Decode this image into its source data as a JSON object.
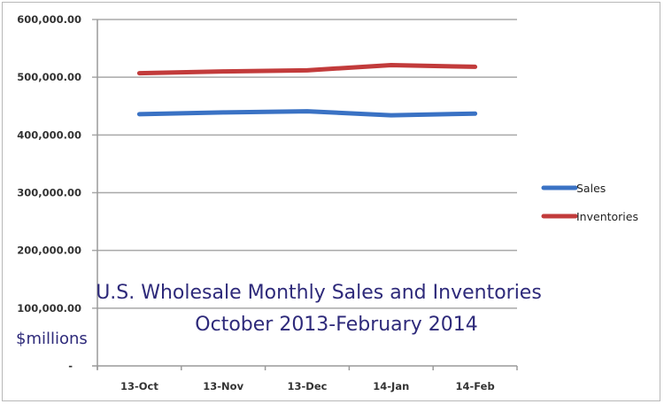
{
  "chart_data": {
    "type": "line",
    "title": "U.S. Wholesale Monthly Sales and Inventories",
    "subtitle": "October 2013-February 2014",
    "xlabel": "",
    "ylabel": "$millions",
    "categories": [
      "13-Oct",
      "13-Nov",
      "13-Dec",
      "14-Jan",
      "14-Feb"
    ],
    "series": [
      {
        "name": "Sales",
        "color": "#3a72c4",
        "values": [
          436000,
          439000,
          441000,
          434000,
          437000
        ]
      },
      {
        "name": "Inventories",
        "color": "#c23b3b",
        "values": [
          507000,
          510000,
          512000,
          521000,
          518000
        ]
      }
    ],
    "yticks": [
      "600,000.00",
      "500,000.00",
      "400,000.00",
      "300,000.00",
      "200,000.00",
      "100,000.00",
      "-"
    ],
    "ylim": [
      0,
      600000
    ],
    "grid": true,
    "legend_position": "right"
  }
}
